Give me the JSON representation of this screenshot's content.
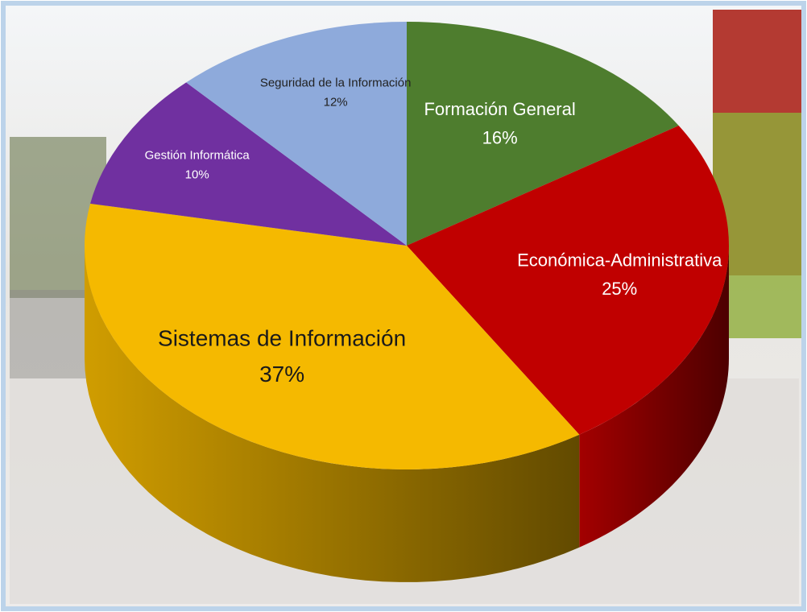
{
  "chart_data": {
    "type": "pie3d",
    "categories": [
      "Formación General",
      "Económica-Administrativa",
      "Sistemas de Información",
      "Gestión Informática",
      "Seguridad de la Información"
    ],
    "values": [
      16,
      25,
      37,
      10,
      12
    ],
    "value_labels": [
      "16%",
      "25%",
      "37%",
      "10%",
      "12%"
    ],
    "colors": [
      "#4e7d2e",
      "#c00000",
      "#f5b900",
      "#7030a0",
      "#8eaadb"
    ]
  }
}
